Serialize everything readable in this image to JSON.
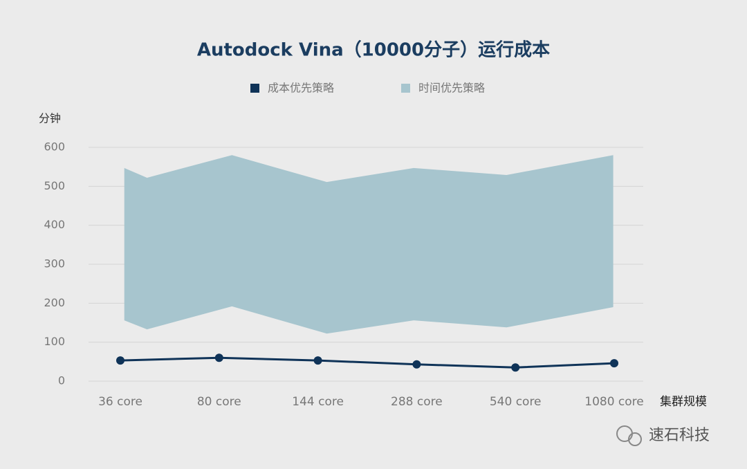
{
  "chart_data": {
    "type": "line",
    "title": "Autodock Vina（10000分子）运行成本",
    "y_label": "分钟",
    "x_label": "集群规模",
    "watermark": "速石科技",
    "categories": [
      "36 core",
      "80 core",
      "144 core",
      "288 core",
      "540 core",
      "1080 core"
    ],
    "series": [
      {
        "name": "成本优先策略",
        "color": "#0f3358",
        "kind": "line",
        "values": [
          53,
          60,
          53,
          43,
          35,
          46
        ]
      },
      {
        "name": "时间优先策略",
        "color": "#a7c5ce",
        "kind": "band",
        "x": [
          0.04,
          0.27,
          1.13,
          2.09,
          2.97,
          3.91,
          4.99
        ],
        "high": [
          547,
          522,
          580,
          511,
          547,
          529,
          580
        ],
        "low": [
          156,
          133,
          192,
          122,
          156,
          138,
          190
        ]
      }
    ],
    "ylim": [
      0,
      600
    ],
    "yticks": [
      0,
      100,
      200,
      300,
      400,
      500,
      600
    ],
    "grid": true,
    "legend": "top"
  }
}
